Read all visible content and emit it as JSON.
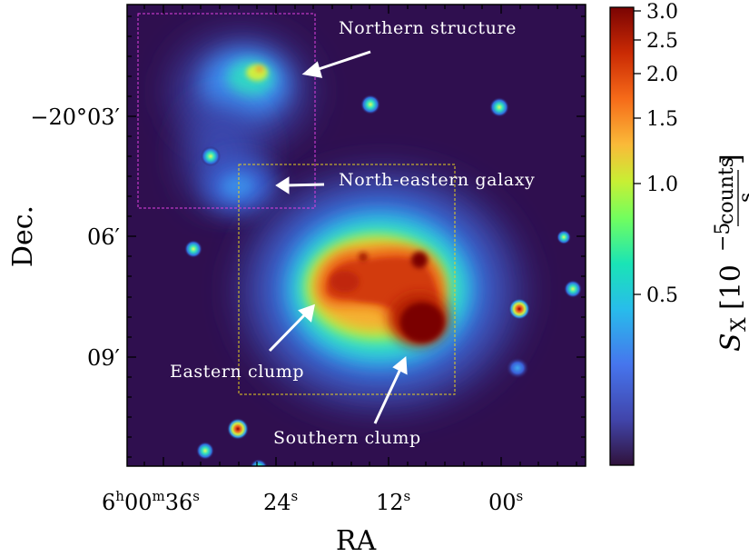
{
  "figure": {
    "x_axis": {
      "label": "RA",
      "ticks": [
        {
          "h": "6",
          "hs": "h",
          "m": "00",
          "ms": "m",
          "s": "36",
          "ss": "s"
        },
        {
          "s": "24",
          "ss": "s"
        },
        {
          "s": "12",
          "ss": "s"
        },
        {
          "s": "00",
          "ss": "s"
        }
      ]
    },
    "y_axis": {
      "label": "Dec.",
      "ticks": [
        "−20°03′",
        "06′",
        "09′"
      ]
    },
    "annotations": {
      "northern": "Northern structure",
      "ne_galaxy": "North-eastern galaxy",
      "eastern": "Eastern clump",
      "southern": "Southern clump"
    },
    "colorbar": {
      "symbol": "S",
      "subscript": "X",
      "unit_open": "[10",
      "unit_exp": "−5",
      "unit_num": "counts",
      "unit_den": "s",
      "unit_close": "]",
      "ticks": [
        "3.0",
        "2.5",
        "2.0",
        "1.5",
        "1.0",
        "0.5"
      ]
    },
    "colors": {
      "background": "#2f0f4f",
      "northern_box": "#e040e0",
      "southern_box": "#e8d020",
      "arrow": "#ffffff"
    }
  }
}
